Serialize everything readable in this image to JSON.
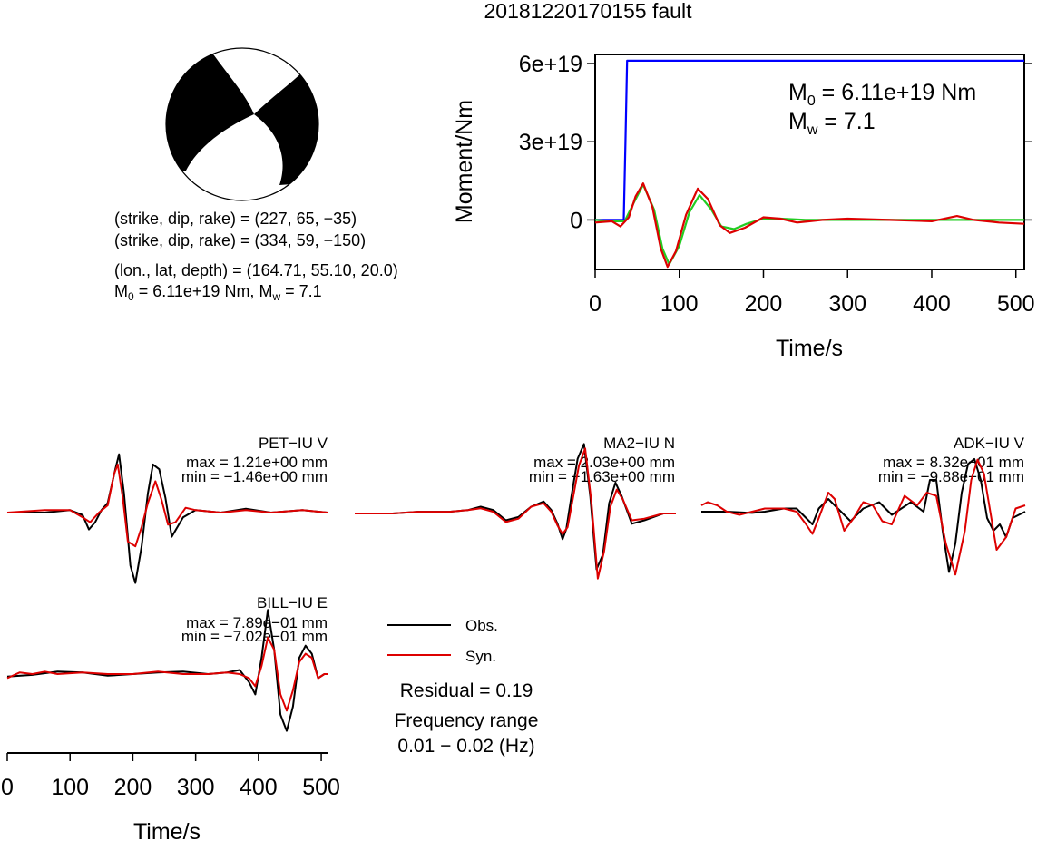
{
  "title": "20181220170155 fault",
  "beachball": {
    "mechanism_lines": [
      "(strike, dip, rake) = (227, 65, −35)",
      "(strike, dip, rake) = (334, 59, −150)",
      "(lon., lat, depth) = (164.71, 55.10, 20.0)"
    ],
    "moment_prefix": "M",
    "moment_sub": "0",
    "moment_value": " = 6.11e+19 Nm, M",
    "mw_sub": "w",
    "mw_value": " = 7.1"
  },
  "chart_data": [
    {
      "type": "line",
      "xlabel": "Time/s",
      "ylabel": "Moment/Nm",
      "xlim": [
        0,
        510
      ],
      "ylim": [
        -1.9e+19,
        6.35e+19
      ],
      "xticks": [
        0,
        100,
        200,
        300,
        400,
        500
      ],
      "xtick_labels": [
        "0",
        "100",
        "200",
        "300",
        "400",
        "500"
      ],
      "yticks": [
        0,
        3e+19,
        6e+19
      ],
      "ytick_labels": [
        "0",
        "3e+19",
        "6e+19"
      ],
      "annotation": {
        "m0_prefix": "M",
        "m0_sub": "0",
        "m0_value": " = 6.11e+19 Nm",
        "mw_prefix": "M",
        "mw_sub": "w",
        "mw_value": " = 7.1"
      },
      "series": [
        {
          "color": "#0000ff",
          "x": [
            0,
            34,
            36,
            38,
            510
          ],
          "y": [
            0,
            0,
            3e+19,
            6.11e+19,
            6.11e+19
          ]
        },
        {
          "color": "#22cc22",
          "x": [
            0,
            20,
            35,
            45,
            57,
            70,
            80,
            88,
            100,
            112,
            124,
            138,
            150,
            165,
            180,
            200,
            220,
            250,
            300,
            350,
            400,
            450,
            510
          ],
          "y": [
            0,
            -5e+17,
            -5e+17,
            6e+18,
            1.35e+19,
            4e+18,
            -1.1e+19,
            -1.7e+19,
            -1e+19,
            3e+18,
            9.5e+18,
            4e+18,
            -2.5e+18,
            -3.5e+18,
            -1.5e+18,
            5e+17,
            5e+17,
            0.0,
            0.0,
            0.0,
            0.0,
            0.0,
            0.0
          ]
        },
        {
          "color": "#dd0000",
          "x": [
            0,
            20,
            30,
            40,
            48,
            57,
            68,
            78,
            86,
            96,
            108,
            122,
            134,
            148,
            160,
            178,
            200,
            220,
            240,
            270,
            300,
            350,
            400,
            430,
            450,
            480,
            510
          ],
          "y": [
            -1e+18,
            -5e+17,
            -2.5e+18,
            1e+18,
            9e+18,
            1.4e+19,
            5e+18,
            -1.1e+19,
            -1.8e+19,
            -1.2e+19,
            2e+18,
            1.2e+19,
            8e+18,
            -2e+18,
            -5e+18,
            -3e+18,
            1e+18,
            5e+17,
            -1e+18,
            0.0,
            5e+17,
            0.0,
            -5e+17,
            1.5e+18,
            0.0,
            -1e+18,
            -1.5e+18
          ]
        }
      ]
    },
    {
      "type": "line",
      "station": "PET−IU V",
      "max_label": "max = 1.21e+00 mm",
      "min_label": "min = −1.46e+00 mm",
      "xlim": [
        0,
        510
      ],
      "ylim": [
        -1.6,
        1.6
      ],
      "series": [
        {
          "name": "Obs.",
          "color": "#000000",
          "x": [
            0,
            60,
            100,
            120,
            130,
            140,
            150,
            160,
            172,
            178,
            186,
            196,
            204,
            214,
            224,
            232,
            242,
            252,
            262,
            280,
            300,
            340,
            380,
            420,
            470,
            510
          ],
          "y": [
            0,
            0,
            0.05,
            -0.05,
            -0.35,
            -0.2,
            0.05,
            0.2,
            0.9,
            1.21,
            0.4,
            -1.1,
            -1.46,
            -0.7,
            0.4,
            1.0,
            0.9,
            0.3,
            -0.5,
            -0.1,
            0.05,
            0.0,
            0.08,
            0.0,
            0.05,
            0.0
          ]
        },
        {
          "name": "Syn.",
          "color": "#dd0000",
          "x": [
            0,
            60,
            100,
            120,
            132,
            146,
            160,
            170,
            176,
            184,
            192,
            204,
            214,
            224,
            236,
            246,
            256,
            268,
            284,
            300,
            340,
            380,
            420,
            470,
            510
          ],
          "y": [
            0,
            0.05,
            0.05,
            -0.1,
            -0.2,
            0.0,
            0.15,
            0.8,
            1.0,
            0.3,
            -0.6,
            -0.7,
            -0.3,
            0.2,
            0.65,
            0.25,
            -0.25,
            -0.2,
            0.1,
            0.05,
            0.0,
            0.05,
            0.0,
            0.05,
            0.0
          ]
        }
      ]
    },
    {
      "type": "line",
      "station": "MA2−IU N",
      "max_label": "max = 2.03e+00 mm",
      "min_label": "min = −1.63e+00 mm",
      "xlim": [
        0,
        510
      ],
      "ylim": [
        -2.2,
        2.2
      ],
      "series": [
        {
          "name": "Obs.",
          "color": "#000000",
          "x": [
            0,
            60,
            100,
            150,
            180,
            200,
            220,
            240,
            260,
            280,
            300,
            312,
            322,
            330,
            336,
            344,
            354,
            364,
            374,
            384,
            394,
            404,
            414,
            424,
            440,
            460,
            490,
            510
          ],
          "y": [
            0,
            0,
            0.05,
            0.05,
            0.1,
            0.2,
            0.1,
            -0.2,
            -0.1,
            0.2,
            0.35,
            0.1,
            -0.3,
            -0.75,
            -0.45,
            0.5,
            1.6,
            2.03,
            0.5,
            -1.63,
            -1.2,
            0.3,
            0.9,
            0.5,
            -0.3,
            -0.2,
            0.0,
            0.0
          ]
        },
        {
          "name": "Syn.",
          "color": "#dd0000",
          "x": [
            0,
            60,
            100,
            150,
            180,
            200,
            220,
            240,
            260,
            280,
            300,
            312,
            322,
            330,
            338,
            346,
            356,
            366,
            376,
            386,
            396,
            406,
            416,
            426,
            440,
            460,
            490,
            510
          ],
          "y": [
            0,
            0,
            0.05,
            0.05,
            0.1,
            0.15,
            0.05,
            -0.25,
            -0.15,
            0.2,
            0.3,
            0.05,
            -0.35,
            -0.6,
            -0.4,
            0.4,
            1.4,
            1.9,
            0.3,
            -1.9,
            -1.1,
            0.2,
            0.7,
            0.4,
            -0.2,
            -0.15,
            0.0,
            0.0
          ]
        }
      ]
    },
    {
      "type": "line",
      "station": "ADK−IU V",
      "max_label": "max = 8.32e−01 mm",
      "min_label": "min = −9.88e−01 mm",
      "xlim": [
        0,
        510
      ],
      "ylim": [
        -1.2,
        1.2
      ],
      "series": [
        {
          "name": "Obs.",
          "color": "#000000",
          "x": [
            0,
            40,
            80,
            100,
            130,
            150,
            165,
            175,
            185,
            200,
            215,
            235,
            255,
            280,
            300,
            330,
            350,
            360,
            370,
            380,
            390,
            400,
            410,
            420,
            430,
            440,
            450,
            460,
            470,
            480,
            490,
            510
          ],
          "y": [
            0,
            0.0,
            -0.02,
            0.0,
            0.05,
            0.05,
            -0.1,
            -0.2,
            0.05,
            0.2,
            0.05,
            -0.15,
            0.05,
            0.15,
            -0.05,
            0.15,
            0.0,
            0.5,
            0.5,
            -0.3,
            -0.95,
            -0.5,
            0.3,
            0.75,
            0.83,
            0.5,
            -0.1,
            -0.3,
            -0.2,
            -0.4,
            -0.1,
            0.0
          ]
        },
        {
          "name": "Syn.",
          "color": "#dd0000",
          "x": [
            0,
            10,
            25,
            40,
            60,
            80,
            100,
            130,
            150,
            165,
            175,
            185,
            200,
            210,
            225,
            240,
            255,
            270,
            285,
            300,
            320,
            340,
            355,
            370,
            385,
            400,
            415,
            425,
            435,
            445,
            455,
            465,
            480,
            495,
            510
          ],
          "y": [
            0.1,
            0.15,
            0.1,
            0.0,
            -0.05,
            0.0,
            0.05,
            0.05,
            0.0,
            -0.2,
            -0.35,
            -0.1,
            0.3,
            0.2,
            -0.3,
            -0.1,
            0.15,
            0.1,
            -0.15,
            -0.2,
            0.25,
            0.1,
            0.3,
            0.25,
            -0.5,
            -0.99,
            -0.3,
            0.5,
            0.82,
            0.6,
            0.0,
            -0.6,
            -0.4,
            0.05,
            0.1
          ]
        }
      ]
    },
    {
      "type": "line",
      "station": "BILL−IU E",
      "max_label": "max = 7.89e−01 mm",
      "min_label": "min = −7.02e−01 mm",
      "xlabel": "Time/s",
      "xlim": [
        0,
        510
      ],
      "ylim": [
        -0.95,
        0.95
      ],
      "xticks": [
        0,
        100,
        200,
        300,
        400,
        500
      ],
      "xtick_labels": [
        "0",
        "100",
        "200",
        "300",
        "400",
        "500"
      ],
      "series": [
        {
          "name": "Obs.",
          "color": "#000000",
          "x": [
            0,
            40,
            80,
            120,
            160,
            200,
            240,
            280,
            320,
            350,
            370,
            385,
            395,
            405,
            415,
            425,
            435,
            445,
            455,
            465,
            475,
            485,
            495,
            505,
            510
          ],
          "y": [
            -0.03,
            -0.01,
            0.03,
            0.02,
            -0.02,
            0.0,
            0.02,
            0.03,
            0.0,
            0.02,
            0.05,
            -0.1,
            -0.25,
            0.2,
            0.79,
            0.3,
            -0.5,
            -0.7,
            -0.4,
            0.2,
            0.35,
            0.25,
            -0.05,
            0.0,
            0.0
          ]
        },
        {
          "name": "Syn.",
          "color": "#dd0000",
          "x": [
            0,
            20,
            40,
            60,
            80,
            120,
            160,
            200,
            240,
            280,
            320,
            350,
            370,
            385,
            395,
            405,
            415,
            425,
            435,
            445,
            455,
            465,
            475,
            485,
            495,
            505,
            510
          ],
          "y": [
            -0.05,
            0.02,
            0.0,
            0.03,
            0.0,
            0.02,
            0.0,
            0.0,
            0.03,
            0.0,
            0.0,
            0.02,
            0.0,
            -0.05,
            -0.15,
            0.1,
            0.45,
            0.3,
            -0.25,
            -0.45,
            -0.2,
            0.15,
            0.25,
            0.2,
            -0.05,
            0.0,
            0.0
          ]
        }
      ]
    }
  ],
  "legend": {
    "obs_label": "Obs.",
    "syn_label": "Syn.",
    "obs_color": "#000000",
    "syn_color": "#dd0000"
  },
  "residual": "Residual = 0.19",
  "freq_title": "Frequency range",
  "freq_value": "0.01 − 0.02 (Hz)"
}
